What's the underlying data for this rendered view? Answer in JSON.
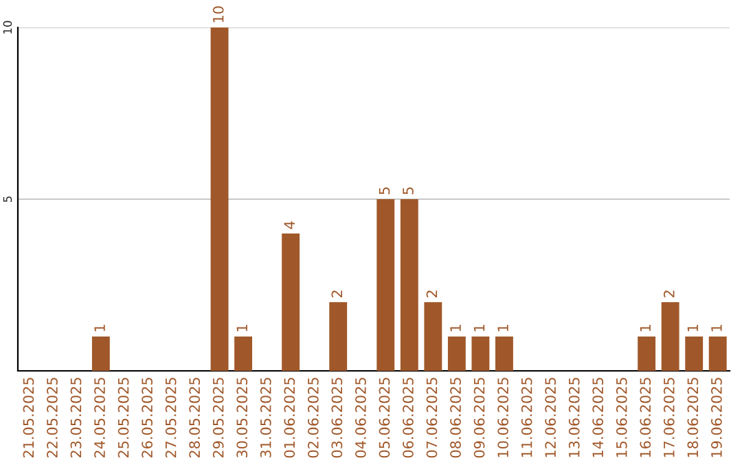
{
  "chart_data": {
    "type": "bar",
    "categories": [
      "21.05.2025",
      "22.05.2025",
      "23.05.2025",
      "24.05.2025",
      "25.05.2025",
      "26.05.2025",
      "27.05.2025",
      "28.05.2025",
      "29.05.2025",
      "30.05.2025",
      "31.05.2025",
      "01.06.2025",
      "02.06.2025",
      "03.06.2025",
      "04.06.2025",
      "05.06.2025",
      "06.06.2025",
      "07.06.2025",
      "08.06.2025",
      "09.06.2025",
      "10.06.2025",
      "11.06.2025",
      "12.06.2025",
      "13.06.2025",
      "14.06.2025",
      "15.06.2025",
      "16.06.2025",
      "17.06.2025",
      "18.06.2025",
      "19.06.2025"
    ],
    "values": [
      0,
      0,
      0,
      1,
      0,
      0,
      0,
      0,
      10,
      1,
      0,
      4,
      0,
      2,
      0,
      5,
      5,
      2,
      1,
      1,
      1,
      0,
      0,
      0,
      0,
      0,
      1,
      2,
      1,
      1
    ],
    "value_labels": [
      null,
      null,
      null,
      "1",
      null,
      null,
      null,
      null,
      "10",
      "1",
      null,
      "4",
      null,
      "2",
      null,
      "5",
      "5",
      "2",
      "1",
      "1",
      "1",
      null,
      null,
      null,
      null,
      null,
      "1",
      "2",
      "1",
      "1"
    ],
    "color": "#a0582a",
    "ylim": [
      0,
      10
    ],
    "yticks": [
      5,
      10
    ],
    "grid": "y",
    "legend": false
  }
}
